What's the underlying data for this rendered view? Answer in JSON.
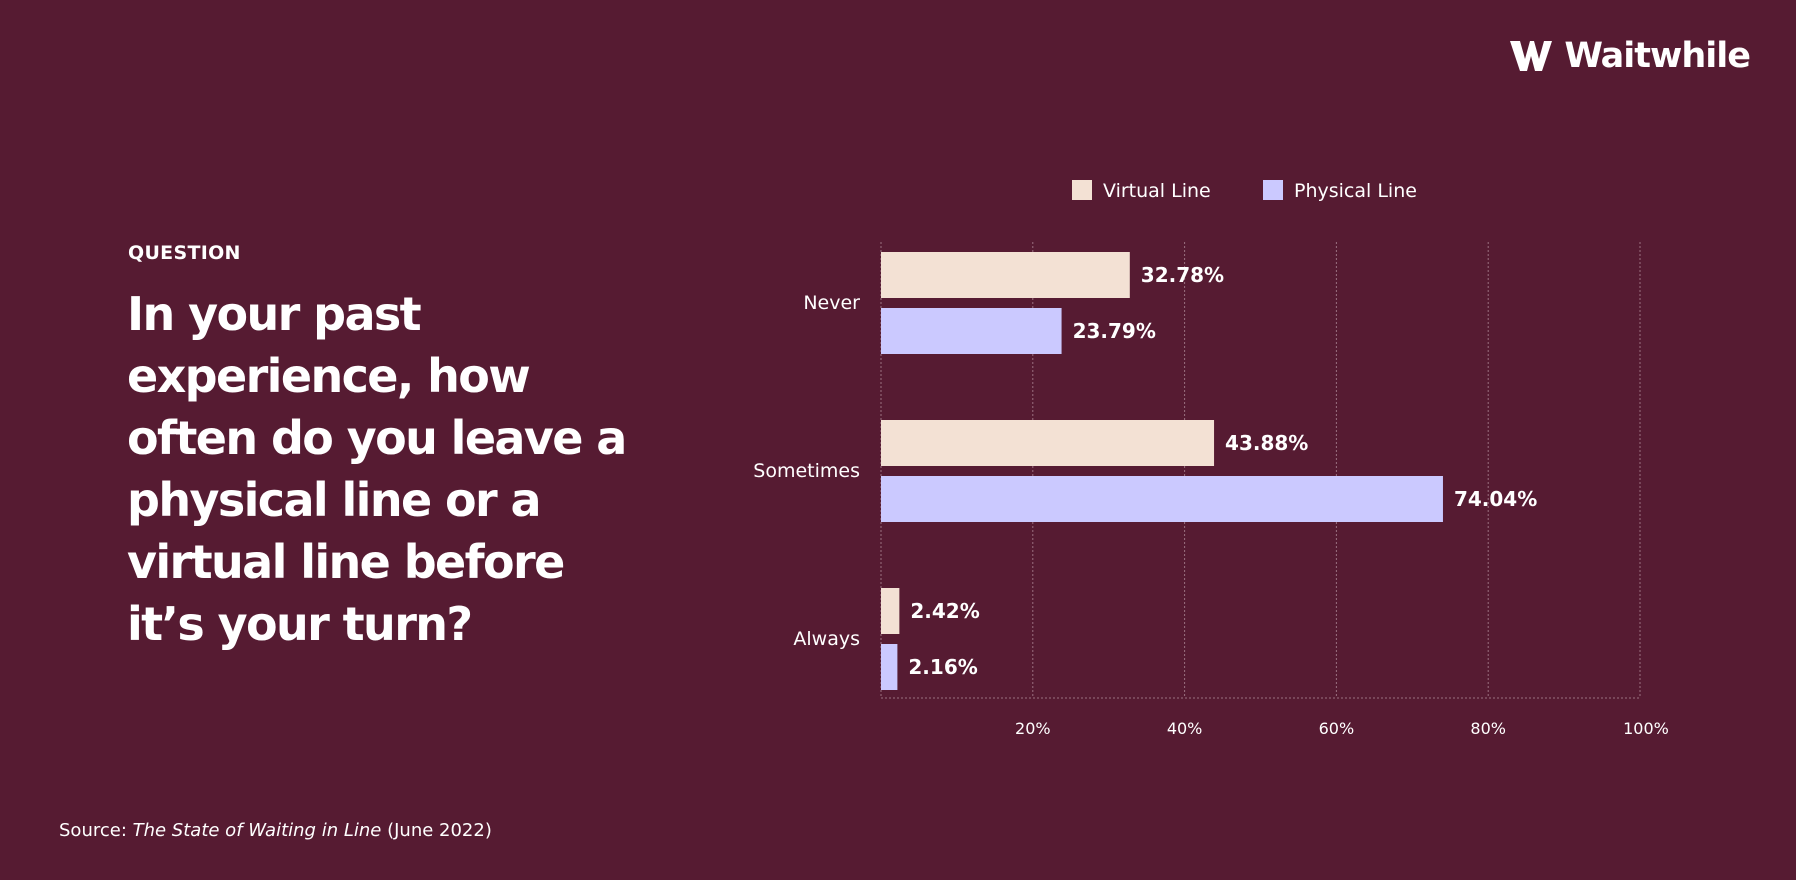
{
  "brand": {
    "name": "Waitwhile"
  },
  "kicker": "QUESTION",
  "headline": "In your past experience, how often do you leave a physical line or a virtual line before it’s your turn?",
  "source": {
    "prefix": "Source: ",
    "title": "The State of Waiting in Line",
    "suffix": " (June 2022)"
  },
  "colors": {
    "background": "#561b32",
    "virtual": "#f3e1d4",
    "physical": "#cbc9ff",
    "text": "#ffffff",
    "grid": "#9a7080"
  },
  "chart_data": {
    "type": "bar",
    "orientation": "horizontal",
    "categories": [
      "Never",
      "Sometimes",
      "Always"
    ],
    "series": [
      {
        "name": "Virtual Line",
        "values": [
          32.78,
          43.88,
          2.42
        ],
        "labels": [
          "32.78%",
          "43.88%",
          "2.42%"
        ]
      },
      {
        "name": "Physical Line",
        "values": [
          23.79,
          74.04,
          2.16
        ],
        "labels": [
          "23.79%",
          "74.04%",
          "2.16%"
        ]
      }
    ],
    "xlim": [
      0,
      100
    ],
    "ticks": [
      "20%",
      "40%",
      "60%",
      "80%",
      "100%"
    ],
    "tick_values": [
      20,
      40,
      60,
      80,
      100
    ],
    "legend_position": "top",
    "grid": true
  }
}
